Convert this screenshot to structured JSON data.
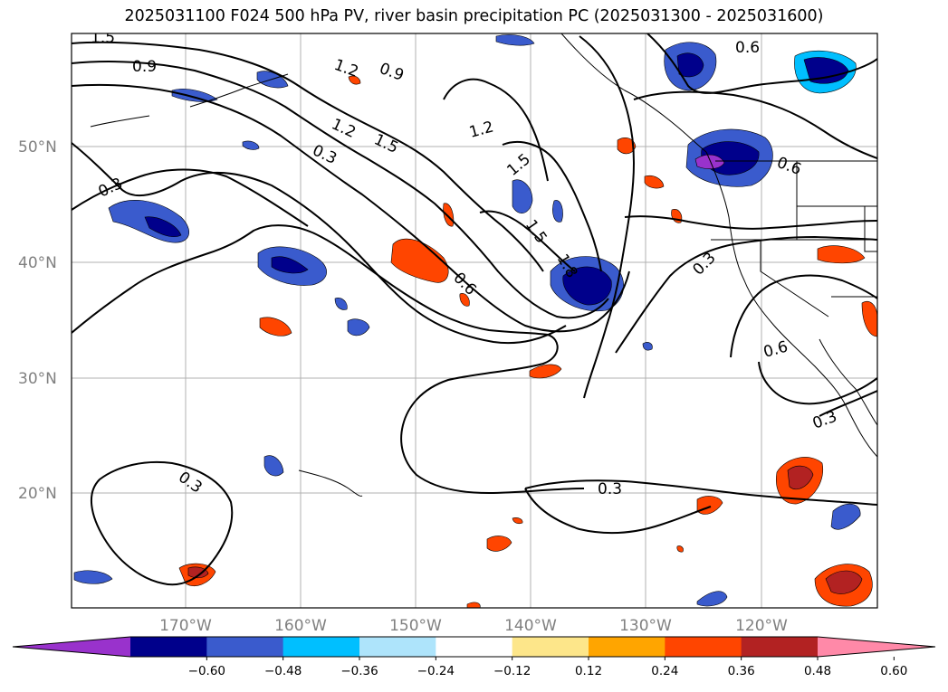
{
  "title": "2025031100 F024 500 hPa PV, river basin precipitation PC (2025031300 - 2025031600)",
  "map": {
    "lat_ticks": [
      "50°N",
      "40°N",
      "30°N",
      "20°N"
    ],
    "lon_ticks": [
      "170°W",
      "160°W",
      "150°W",
      "140°W",
      "130°W",
      "120°W"
    ],
    "contour_labels": [
      "1.5",
      "0.9",
      "1.2",
      "1.5",
      "0.3",
      "0.3",
      "1.2",
      "1.5",
      "1.5",
      "1.8",
      "0.6",
      "0.6",
      "0.6",
      "0.3",
      "0.6",
      "0.3",
      "0.3",
      "0.3",
      "1.2",
      "0.9"
    ]
  },
  "colorbar": {
    "colors": [
      "#9932cc",
      "#00008b",
      "#3a5bcd",
      "#00bfff",
      "#aee4fb",
      "#ffffff",
      "#fde68a",
      "#ffa500",
      "#ff4500",
      "#b22222",
      "#ff89a8"
    ],
    "tick_labels": [
      "−0.60",
      "−0.48",
      "−0.36",
      "−0.24",
      "−0.12",
      "0.12",
      "0.24",
      "0.36",
      "0.48",
      "0.60"
    ]
  }
}
